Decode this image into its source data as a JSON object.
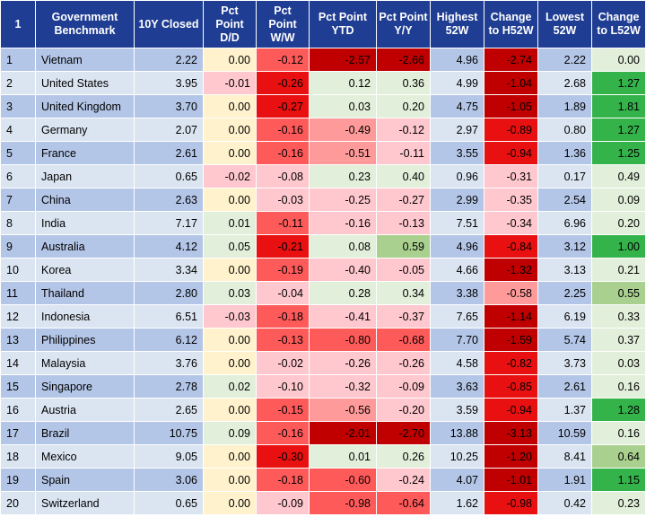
{
  "headers": [
    "1",
    "Government Benchmark",
    "10Y Closed",
    "Pct Point D/D",
    "Pct Point W/W",
    "Pct Point YTD",
    "Pct Point Y/Y",
    "Highest 52W",
    "Change to H52W",
    "Lowest 52W",
    "Change to L52W"
  ],
  "colors": {
    "header_bg": "#1f3d92",
    "row_odd": "#b4c6e7",
    "row_even": "#dbe5f1",
    "neutral": "#fff2cc",
    "red_1": "#ffc7ce",
    "red_2": "#ff9a9a",
    "red_3": "#ff5a5a",
    "red_4": "#e81010",
    "red_5": "#c00000",
    "green_1": "#e2efda",
    "green_2": "#a9d08e",
    "green_3": "#34b34a"
  },
  "rows": [
    {
      "idx": "1",
      "name": "Vietnam",
      "close": "2.22",
      "dd": "0.00",
      "ww": "-0.12",
      "ytd": "-2.57",
      "yy": "-2.66",
      "h52": "4.96",
      "ch52": "-2.74",
      "l52": "2.22",
      "cl52": "0.00"
    },
    {
      "idx": "2",
      "name": "United States",
      "close": "3.95",
      "dd": "-0.01",
      "ww": "-0.26",
      "ytd": "0.12",
      "yy": "0.36",
      "h52": "4.99",
      "ch52": "-1.04",
      "l52": "2.68",
      "cl52": "1.27"
    },
    {
      "idx": "3",
      "name": "United Kingdom",
      "close": "3.70",
      "dd": "0.00",
      "ww": "-0.27",
      "ytd": "0.03",
      "yy": "0.20",
      "h52": "4.75",
      "ch52": "-1.05",
      "l52": "1.89",
      "cl52": "1.81"
    },
    {
      "idx": "4",
      "name": "Germany",
      "close": "2.07",
      "dd": "0.00",
      "ww": "-0.16",
      "ytd": "-0.49",
      "yy": "-0.12",
      "h52": "2.97",
      "ch52": "-0.89",
      "l52": "0.80",
      "cl52": "1.27"
    },
    {
      "idx": "5",
      "name": "France",
      "close": "2.61",
      "dd": "0.00",
      "ww": "-0.16",
      "ytd": "-0.51",
      "yy": "-0.11",
      "h52": "3.55",
      "ch52": "-0.94",
      "l52": "1.36",
      "cl52": "1.25"
    },
    {
      "idx": "6",
      "name": "Japan",
      "close": "0.65",
      "dd": "-0.02",
      "ww": "-0.08",
      "ytd": "0.23",
      "yy": "0.40",
      "h52": "0.96",
      "ch52": "-0.31",
      "l52": "0.17",
      "cl52": "0.49"
    },
    {
      "idx": "7",
      "name": "China",
      "close": "2.63",
      "dd": "0.00",
      "ww": "-0.03",
      "ytd": "-0.25",
      "yy": "-0.27",
      "h52": "2.99",
      "ch52": "-0.35",
      "l52": "2.54",
      "cl52": "0.09"
    },
    {
      "idx": "8",
      "name": "India",
      "close": "7.17",
      "dd": "0.01",
      "ww": "-0.11",
      "ytd": "-0.16",
      "yy": "-0.13",
      "h52": "7.51",
      "ch52": "-0.34",
      "l52": "6.96",
      "cl52": "0.20"
    },
    {
      "idx": "9",
      "name": "Australia",
      "close": "4.12",
      "dd": "0.05",
      "ww": "-0.21",
      "ytd": "0.08",
      "yy": "0.59",
      "h52": "4.96",
      "ch52": "-0.84",
      "l52": "3.12",
      "cl52": "1.00"
    },
    {
      "idx": "10",
      "name": "Korea",
      "close": "3.34",
      "dd": "0.00",
      "ww": "-0.19",
      "ytd": "-0.40",
      "yy": "-0.05",
      "h52": "4.66",
      "ch52": "-1.32",
      "l52": "3.13",
      "cl52": "0.21"
    },
    {
      "idx": "11",
      "name": "Thailand",
      "close": "2.80",
      "dd": "0.03",
      "ww": "-0.04",
      "ytd": "0.28",
      "yy": "0.34",
      "h52": "3.38",
      "ch52": "-0.58",
      "l52": "2.25",
      "cl52": "0.55"
    },
    {
      "idx": "12",
      "name": "Indonesia",
      "close": "6.51",
      "dd": "-0.03",
      "ww": "-0.18",
      "ytd": "-0.41",
      "yy": "-0.37",
      "h52": "7.65",
      "ch52": "-1.14",
      "l52": "6.19",
      "cl52": "0.33"
    },
    {
      "idx": "13",
      "name": "Philippines",
      "close": "6.12",
      "dd": "0.00",
      "ww": "-0.13",
      "ytd": "-0.80",
      "yy": "-0.68",
      "h52": "7.70",
      "ch52": "-1.59",
      "l52": "5.74",
      "cl52": "0.37"
    },
    {
      "idx": "14",
      "name": "Malaysia",
      "close": "3.76",
      "dd": "0.00",
      "ww": "-0.02",
      "ytd": "-0.26",
      "yy": "-0.26",
      "h52": "4.58",
      "ch52": "-0.82",
      "l52": "3.73",
      "cl52": "0.03"
    },
    {
      "idx": "15",
      "name": "Singapore",
      "close": "2.78",
      "dd": "0.02",
      "ww": "-0.10",
      "ytd": "-0.32",
      "yy": "-0.09",
      "h52": "3.63",
      "ch52": "-0.85",
      "l52": "2.61",
      "cl52": "0.16"
    },
    {
      "idx": "16",
      "name": "Austria",
      "close": "2.65",
      "dd": "0.00",
      "ww": "-0.15",
      "ytd": "-0.56",
      "yy": "-0.20",
      "h52": "3.59",
      "ch52": "-0.94",
      "l52": "1.37",
      "cl52": "1.28"
    },
    {
      "idx": "17",
      "name": "Brazil",
      "close": "10.75",
      "dd": "0.09",
      "ww": "-0.16",
      "ytd": "-2.01",
      "yy": "-2.70",
      "h52": "13.88",
      "ch52": "-3.13",
      "l52": "10.59",
      "cl52": "0.16"
    },
    {
      "idx": "18",
      "name": "Mexico",
      "close": "9.05",
      "dd": "0.00",
      "ww": "-0.30",
      "ytd": "0.01",
      "yy": "0.26",
      "h52": "10.25",
      "ch52": "-1.20",
      "l52": "8.41",
      "cl52": "0.64"
    },
    {
      "idx": "19",
      "name": "Spain",
      "close": "3.06",
      "dd": "0.00",
      "ww": "-0.18",
      "ytd": "-0.60",
      "yy": "-0.24",
      "h52": "4.07",
      "ch52": "-1.01",
      "l52": "1.91",
      "cl52": "1.15"
    },
    {
      "idx": "20",
      "name": "Switzerland",
      "close": "0.65",
      "dd": "0.00",
      "ww": "-0.09",
      "ytd": "-0.98",
      "yy": "-0.64",
      "h52": "1.62",
      "ch52": "-0.98",
      "l52": "0.42",
      "cl52": "0.23"
    }
  ]
}
